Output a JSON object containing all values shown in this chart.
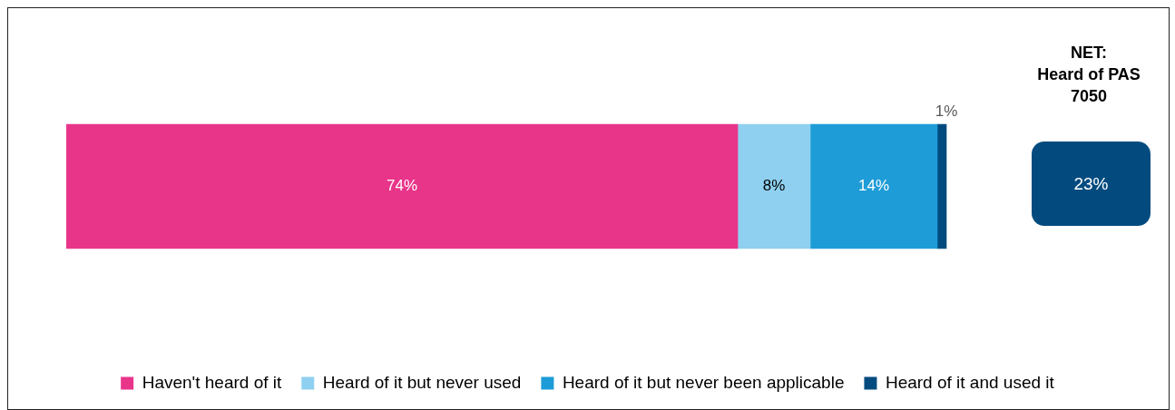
{
  "chart_data": {
    "type": "bar",
    "orientation": "horizontal",
    "stacked": true,
    "categories": [
      null
    ],
    "tick_labels": false,
    "legend": "bottom",
    "series": [
      {
        "name": "Haven't heard of it",
        "color": "#e8358a",
        "values": [
          74
        ],
        "value_labels": [
          "74%"
        ]
      },
      {
        "name": "Heard of it but never used",
        "color": "#8fd0f0",
        "values": [
          8
        ],
        "value_labels": [
          "8%"
        ]
      },
      {
        "name": "Heard of it but never been applicable",
        "color": "#1e9cd7",
        "values": [
          14
        ],
        "value_labels": [
          "14%"
        ]
      },
      {
        "name": "Heard of it and used it",
        "color": "#034b7f",
        "values": [
          1
        ],
        "value_labels": [
          "1%"
        ]
      }
    ],
    "annotations": [
      "NET:\nHeard of PAS 7050",
      "23%"
    ]
  }
}
